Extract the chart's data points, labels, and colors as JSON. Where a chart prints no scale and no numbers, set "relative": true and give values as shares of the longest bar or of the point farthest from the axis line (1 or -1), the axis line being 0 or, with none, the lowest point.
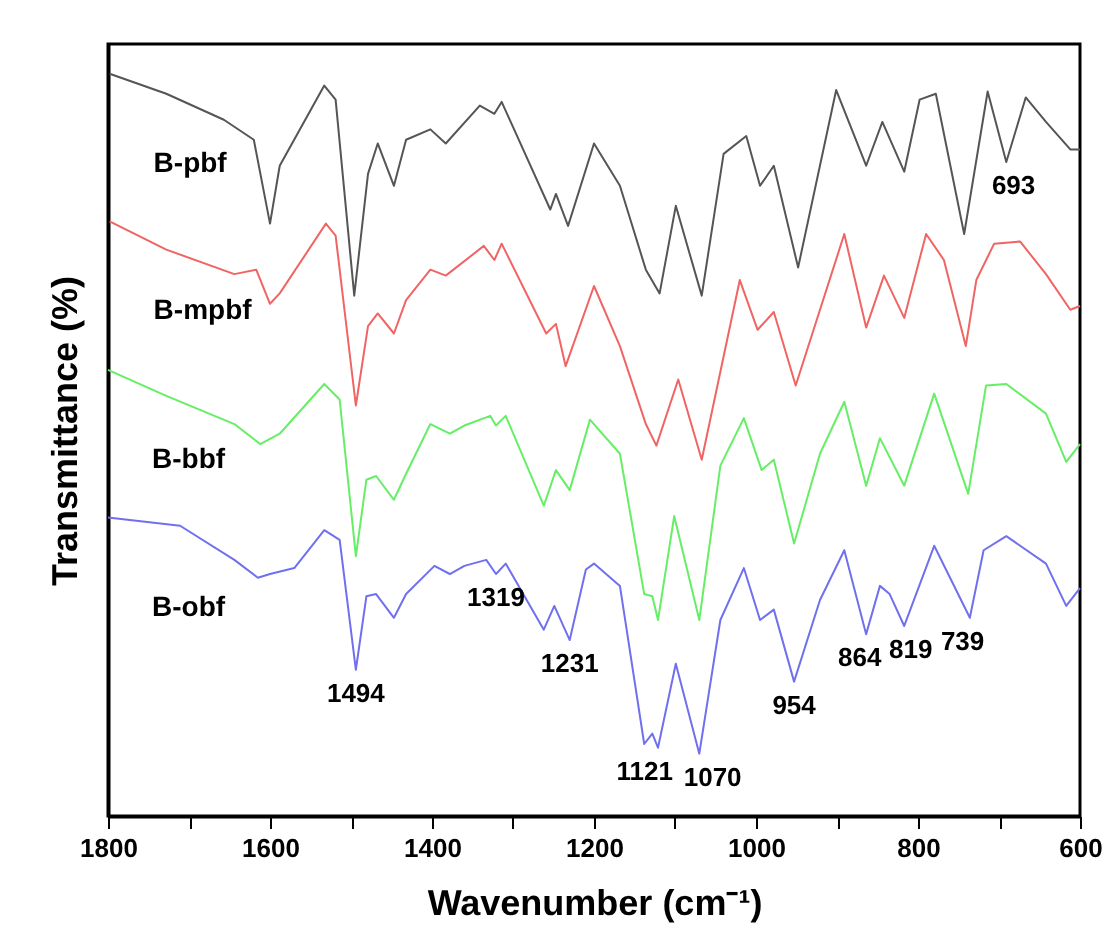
{
  "chart_data": {
    "type": "line",
    "relative": true,
    "xlabel": "Wavenumber (cm⁻¹)",
    "ylabel": "Transmittance (%)",
    "xlim": [
      1800,
      600
    ],
    "xticks": [
      1800,
      {
        "value": 1700,
        "label": null
      },
      1600,
      {
        "value": 1500,
        "label": null
      },
      1400,
      {
        "value": 1300,
        "label": null
      },
      1200,
      {
        "value": 1100,
        "label": null
      },
      1000,
      {
        "value": 900,
        "label": null
      },
      800,
      {
        "value": 700,
        "label": null
      },
      600
    ],
    "series": [
      {
        "name": "B-pbf",
        "color": "#555555",
        "x": [
          1798,
          1728,
          1657,
          1620,
          1600,
          1588,
          1533,
          1519,
          1496,
          1479,
          1467,
          1447,
          1432,
          1402,
          1383,
          1341,
          1323,
          1314,
          1254,
          1247,
          1232,
          1200,
          1168,
          1136,
          1119,
          1099,
          1067,
          1040,
          1012,
          995,
          978,
          948,
          901,
          864,
          844,
          817,
          798,
          778,
          743,
          714,
          691,
          667,
          642,
          612,
          600
        ],
        "values": [
          1.0,
          0.973,
          0.938,
          0.911,
          0.798,
          0.876,
          0.984,
          0.965,
          0.701,
          0.865,
          0.906,
          0.849,
          0.911,
          0.925,
          0.906,
          0.957,
          0.946,
          0.962,
          0.817,
          0.838,
          0.795,
          0.906,
          0.849,
          0.736,
          0.704,
          0.822,
          0.701,
          0.892,
          0.916,
          0.849,
          0.876,
          0.739,
          0.978,
          0.876,
          0.935,
          0.868,
          0.965,
          0.973,
          0.784,
          0.976,
          0.881,
          0.968,
          0.935,
          0.898,
          0.898
        ]
      },
      {
        "name": "B-mpbf",
        "color": "#f06464",
        "x": [
          1798,
          1728,
          1644,
          1617,
          1600,
          1588,
          1531,
          1519,
          1494,
          1479,
          1467,
          1447,
          1432,
          1402,
          1383,
          1336,
          1323,
          1314,
          1259,
          1247,
          1235,
          1200,
          1168,
          1136,
          1123,
          1096,
          1067,
          1020,
          998,
          978,
          951,
          891,
          864,
          842,
          817,
          790,
          768,
          741,
          728,
          706,
          674,
          642,
          612,
          600
        ],
        "values": [
          0.801,
          0.763,
          0.73,
          0.736,
          0.69,
          0.704,
          0.798,
          0.782,
          0.553,
          0.66,
          0.677,
          0.65,
          0.695,
          0.736,
          0.728,
          0.768,
          0.749,
          0.771,
          0.65,
          0.663,
          0.606,
          0.714,
          0.633,
          0.528,
          0.499,
          0.588,
          0.48,
          0.722,
          0.655,
          0.679,
          0.58,
          0.784,
          0.658,
          0.728,
          0.671,
          0.784,
          0.749,
          0.633,
          0.722,
          0.771,
          0.774,
          0.73,
          0.682,
          0.687
        ]
      },
      {
        "name": "B-bbf",
        "color": "#66ee66",
        "x": [
          1800,
          1728,
          1644,
          1612,
          1588,
          1533,
          1514,
          1494,
          1481,
          1469,
          1447,
          1432,
          1402,
          1378,
          1360,
          1328,
          1321,
          1309,
          1262,
          1247,
          1230,
          1205,
          1168,
          1138,
          1128,
          1121,
          1101,
          1070,
          1044,
          1015,
          993,
          978,
          953,
          921,
          891,
          864,
          847,
          817,
          780,
          738,
          716,
          691,
          642,
          617,
          600
        ],
        "values": [
          0.601,
          0.566,
          0.528,
          0.501,
          0.515,
          0.582,
          0.561,
          0.35,
          0.453,
          0.458,
          0.426,
          0.461,
          0.528,
          0.515,
          0.526,
          0.539,
          0.526,
          0.539,
          0.418,
          0.466,
          0.439,
          0.534,
          0.488,
          0.299,
          0.296,
          0.264,
          0.404,
          0.264,
          0.472,
          0.536,
          0.466,
          0.48,
          0.367,
          0.488,
          0.558,
          0.445,
          0.509,
          0.445,
          0.569,
          0.434,
          0.58,
          0.582,
          0.542,
          0.477,
          0.501
        ]
      },
      {
        "name": "B-obf",
        "color": "#7070ee",
        "x": [
          1800,
          1711,
          1644,
          1615,
          1600,
          1570,
          1533,
          1514,
          1494,
          1481,
          1469,
          1447,
          1432,
          1397,
          1378,
          1360,
          1333,
          1321,
          1309,
          1262,
          1249,
          1230,
          1210,
          1200,
          1168,
          1138,
          1128,
          1121,
          1099,
          1070,
          1044,
          1015,
          995,
          978,
          953,
          921,
          891,
          864,
          847,
          835,
          817,
          780,
          736,
          719,
          691,
          642,
          617,
          600
        ],
        "values": [
          0.402,
          0.391,
          0.345,
          0.321,
          0.326,
          0.334,
          0.385,
          0.372,
          0.197,
          0.296,
          0.299,
          0.267,
          0.299,
          0.337,
          0.326,
          0.337,
          0.345,
          0.326,
          0.34,
          0.251,
          0.283,
          0.237,
          0.332,
          0.34,
          0.31,
          0.097,
          0.111,
          0.092,
          0.205,
          0.084,
          0.264,
          0.334,
          0.264,
          0.278,
          0.181,
          0.291,
          0.358,
          0.245,
          0.31,
          0.299,
          0.256,
          0.364,
          0.267,
          0.358,
          0.377,
          0.34,
          0.283,
          0.307
        ]
      }
    ],
    "annotations": [
      {
        "text": "693",
        "x": 691,
        "y": 0.881
      },
      {
        "text": "1494",
        "x": 1494,
        "y": 0.197
      },
      {
        "text": "1319",
        "x": 1321,
        "y": 0.326
      },
      {
        "text": "1231",
        "x": 1230,
        "y": 0.237
      },
      {
        "text": "1121",
        "x": 1121,
        "y": 0.092
      },
      {
        "text": "1070",
        "x": 1070,
        "y": 0.084
      },
      {
        "text": "954",
        "x": 953,
        "y": 0.181
      },
      {
        "text": "864",
        "x": 864,
        "y": 0.245
      },
      {
        "text": "819",
        "x": 817,
        "y": 0.256
      },
      {
        "text": "739",
        "x": 736,
        "y": 0.267
      }
    ]
  }
}
